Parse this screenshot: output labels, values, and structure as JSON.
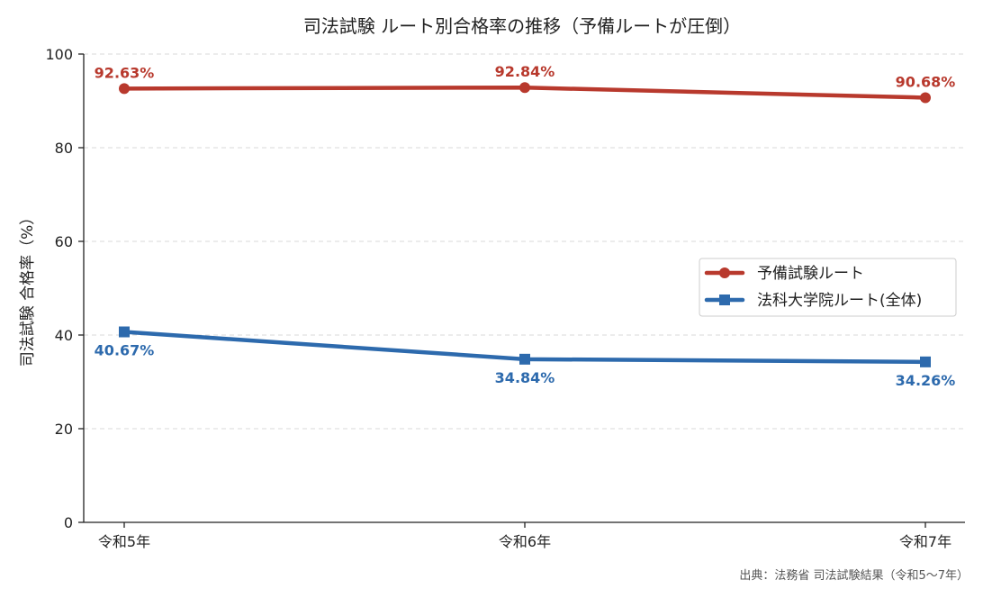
{
  "chart_data": {
    "type": "line",
    "title": "司法試験 ルート別合格率の推移（予備ルートが圧倒）",
    "ylabel": "司法試験 合格率（%）",
    "xlabel": "",
    "categories": [
      "令和5年",
      "令和6年",
      "令和7年"
    ],
    "ylim": [
      0,
      100
    ],
    "yticks": [
      0,
      20,
      40,
      60,
      80,
      100
    ],
    "grid": "horizontal-dashed",
    "legend_position": "right",
    "series": [
      {
        "name": "予備試験ルート",
        "values": [
          92.63,
          92.84,
          90.68
        ],
        "labels": [
          "92.63%",
          "92.84%",
          "90.68%"
        ],
        "color": "#b8392d",
        "marker": "circle",
        "label_position": "above"
      },
      {
        "name": "法科大学院ルート(全体)",
        "values": [
          40.67,
          34.84,
          34.26
        ],
        "labels": [
          "40.67%",
          "34.84%",
          "34.26%"
        ],
        "color": "#2d6aad",
        "marker": "square",
        "label_position": "below"
      }
    ],
    "source": "出典：法務省 司法試験結果（令和5〜7年）"
  }
}
